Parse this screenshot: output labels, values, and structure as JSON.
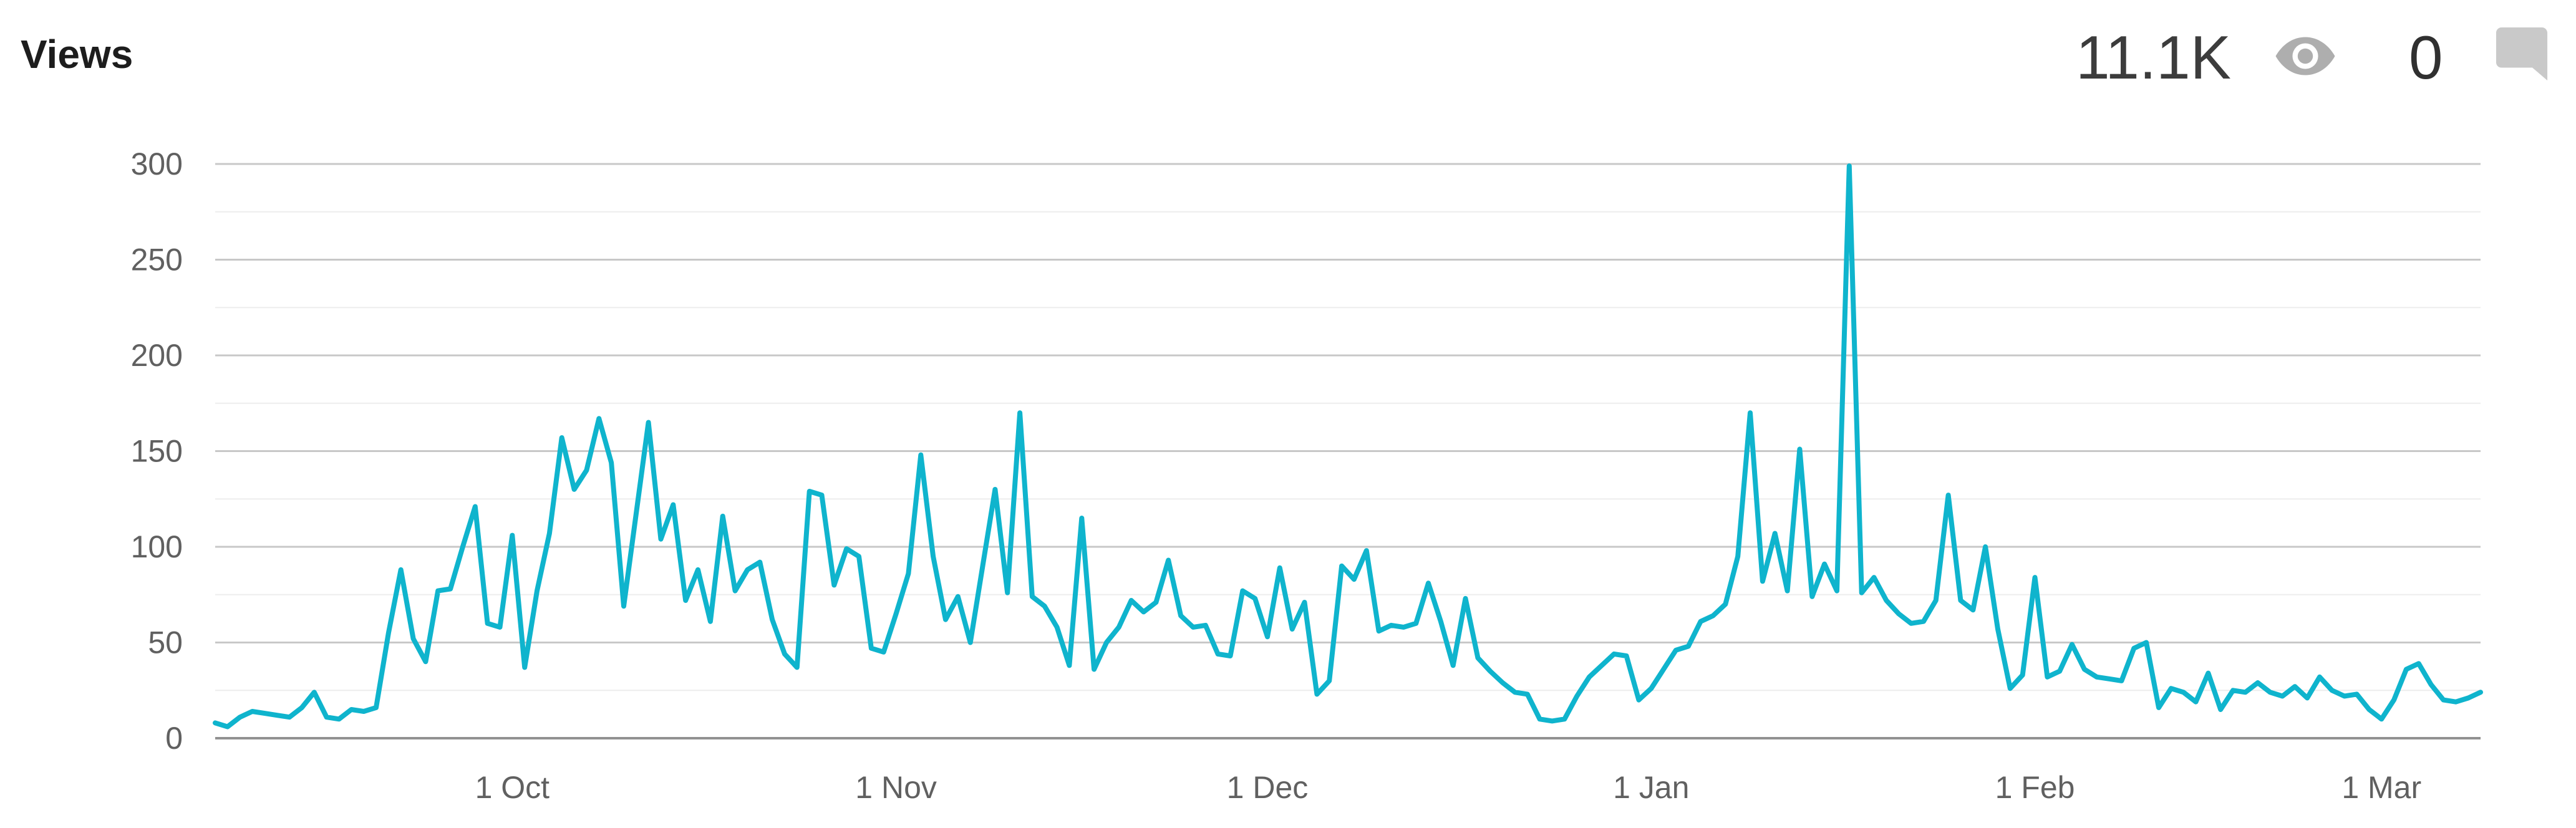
{
  "header": {
    "title": "Views",
    "views_count": "11.1K",
    "comments_count": "0",
    "views_icon": "eye-icon",
    "comments_icon": "comment-bubble-icon"
  },
  "colors": {
    "line": "#0fb4cd",
    "grid_minor": "#ededed",
    "grid_major": "#c8c8c8",
    "axis_baseline": "#919191",
    "axis_label": "#606060",
    "title_text": "#1d1d1d",
    "stat_text": "#3c3c3c",
    "eye_icon": "#aeaeae",
    "comment_icon": "#c9c9c9"
  },
  "chart_data": {
    "type": "line",
    "title": "Views",
    "xlabel": "",
    "ylabel": "",
    "ylim": [
      0,
      300
    ],
    "y_ticks": [
      0,
      50,
      100,
      150,
      200,
      250,
      300
    ],
    "y_minor_step": 25,
    "grid": "horizontal",
    "legend": "none",
    "x_ticks": [
      {
        "label": "1 Oct",
        "index": 24
      },
      {
        "label": "1 Nov",
        "index": 55
      },
      {
        "label": "1 Dec",
        "index": 85
      },
      {
        "label": "1 Jan",
        "index": 116
      },
      {
        "label": "1 Feb",
        "index": 147
      },
      {
        "label": "1 Mar",
        "index": 175
      }
    ],
    "x_range_note": "daily values, first point ~7 Sep, last point ~8 Mar",
    "values": [
      8,
      6,
      11,
      14,
      13,
      12,
      11,
      16,
      24,
      11,
      10,
      15,
      14,
      16,
      55,
      88,
      52,
      40,
      77,
      78,
      100,
      121,
      60,
      58,
      106,
      37,
      77,
      107,
      157,
      130,
      140,
      167,
      144,
      69,
      117,
      165,
      104,
      122,
      72,
      88,
      61,
      116,
      77,
      88,
      92,
      62,
      44,
      37,
      129,
      127,
      80,
      99,
      95,
      47,
      45,
      65,
      86,
      148,
      95,
      62,
      74,
      50,
      90,
      130,
      76,
      170,
      74,
      69,
      58,
      38,
      115,
      36,
      50,
      58,
      72,
      66,
      71,
      93,
      64,
      58,
      59,
      44,
      43,
      77,
      73,
      53,
      89,
      57,
      71,
      23,
      30,
      90,
      83,
      98,
      56,
      59,
      58,
      60,
      81,
      61,
      38,
      73,
      42,
      35,
      29,
      24,
      23,
      10,
      9,
      10,
      22,
      32,
      38,
      44,
      43,
      20,
      26,
      36,
      46,
      48,
      61,
      64,
      70,
      95,
      170,
      82,
      107,
      77,
      151,
      74,
      91,
      77,
      299,
      76,
      84,
      72,
      65,
      60,
      61,
      72,
      127,
      72,
      67,
      100,
      57,
      26,
      33,
      84,
      32,
      35,
      49,
      36,
      32,
      31,
      30,
      47,
      50,
      16,
      26,
      24,
      19,
      34,
      15,
      25,
      24,
      29,
      24,
      22,
      27,
      21,
      32,
      25,
      22,
      23,
      15,
      10,
      20,
      36,
      39,
      28,
      20,
      19,
      21,
      24
    ]
  }
}
